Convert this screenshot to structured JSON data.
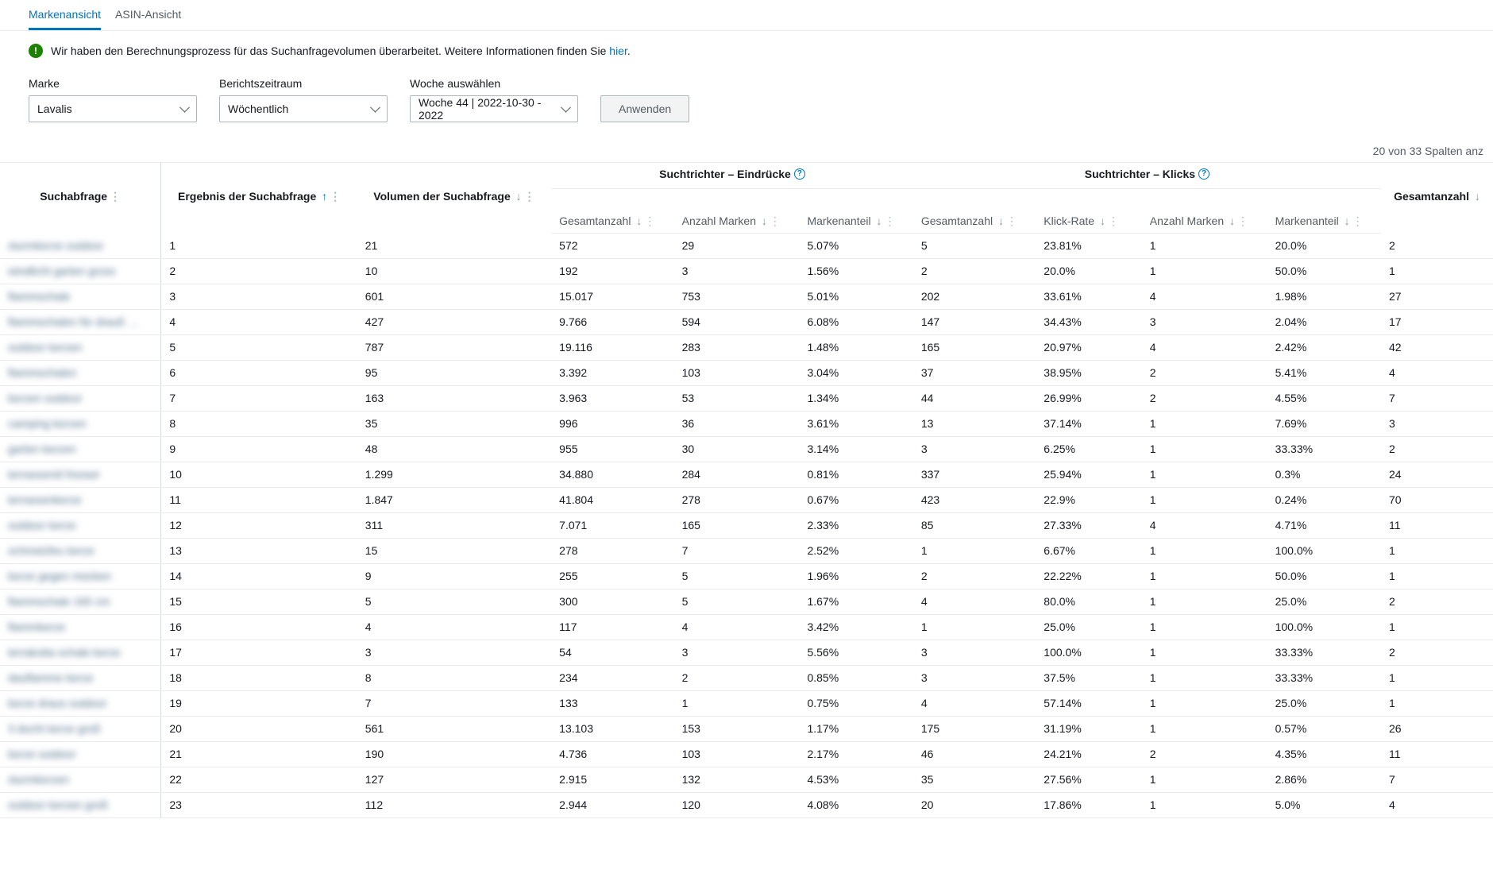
{
  "tabs": {
    "brand": "Markenansicht",
    "asin": "ASIN-Ansicht"
  },
  "notice": {
    "text": "Wir haben den Berechnungsprozess für das Suchanfragevolumen überarbeitet. Weitere Informationen finden Sie ",
    "link": "hier",
    "suffix": "."
  },
  "filters": {
    "brand_label": "Marke",
    "brand_value": "Lavalis",
    "period_label": "Berichtszeitraum",
    "period_value": "Wöchentlich",
    "week_label": "Woche auswählen",
    "week_value": "Woche 44 | 2022-10-30 - 2022",
    "apply": "Anwenden"
  },
  "columns_indicator": "20 von 33 Spalten anz",
  "groups": {
    "impressions": "Suchtrichter – Eindrücke",
    "clicks": "Suchtrichter – Klicks"
  },
  "headers": {
    "query": "Suchabfrage",
    "rank": "Ergebnis der Suchabfrage",
    "volume": "Volumen der Suchabfrage",
    "impr_total": "Gesamtanzahl",
    "impr_brands": "Anzahl Marken",
    "impr_share": "Markenanteil",
    "click_total": "Gesamtanzahl",
    "click_rate": "Klick-Rate",
    "click_brands": "Anzahl Marken",
    "click_share": "Markenanteil",
    "last_total": "Gesamtanzahl"
  },
  "rows": [
    {
      "q": "sturmkerze outdoor",
      "r": "1",
      "v": "21",
      "it": "572",
      "ib": "29",
      "is": "5.07%",
      "ct": "5",
      "cr": "23.81%",
      "cb": "1",
      "cs": "20.0%",
      "lt": "2"
    },
    {
      "q": "windlicht garten gross",
      "r": "2",
      "v": "10",
      "it": "192",
      "ib": "3",
      "is": "1.56%",
      "ct": "2",
      "cr": "20.0%",
      "cb": "1",
      "cs": "50.0%",
      "lt": "1"
    },
    {
      "q": "flammschale",
      "r": "3",
      "v": "601",
      "it": "15.017",
      "ib": "753",
      "is": "5.01%",
      "ct": "202",
      "cr": "33.61%",
      "cb": "4",
      "cs": "1.98%",
      "lt": "27"
    },
    {
      "q": "flammschalen für drauß …",
      "r": "4",
      "v": "427",
      "it": "9.766",
      "ib": "594",
      "is": "6.08%",
      "ct": "147",
      "cr": "34.43%",
      "cb": "3",
      "cs": "2.04%",
      "lt": "17"
    },
    {
      "q": "outdoor kerzen",
      "r": "5",
      "v": "787",
      "it": "19.116",
      "ib": "283",
      "is": "1.48%",
      "ct": "165",
      "cr": "20.97%",
      "cb": "4",
      "cs": "2.42%",
      "lt": "42"
    },
    {
      "q": "flammschalen",
      "r": "6",
      "v": "95",
      "it": "3.392",
      "ib": "103",
      "is": "3.04%",
      "ct": "37",
      "cr": "38.95%",
      "cb": "2",
      "cs": "5.41%",
      "lt": "4"
    },
    {
      "q": "kerzen outdoor",
      "r": "7",
      "v": "163",
      "it": "3.963",
      "ib": "53",
      "is": "1.34%",
      "ct": "44",
      "cr": "26.99%",
      "cb": "2",
      "cs": "4.55%",
      "lt": "7"
    },
    {
      "q": "camping kerzen",
      "r": "8",
      "v": "35",
      "it": "996",
      "ib": "36",
      "is": "3.61%",
      "ct": "13",
      "cr": "37.14%",
      "cb": "1",
      "cs": "7.69%",
      "lt": "3"
    },
    {
      "q": "garten kerzen",
      "r": "9",
      "v": "48",
      "it": "955",
      "ib": "30",
      "is": "3.14%",
      "ct": "3",
      "cr": "6.25%",
      "cb": "1",
      "cs": "33.33%",
      "lt": "2"
    },
    {
      "q": "terrassenöl fresser",
      "r": "10",
      "v": "1.299",
      "it": "34.880",
      "ib": "284",
      "is": "0.81%",
      "ct": "337",
      "cr": "25.94%",
      "cb": "1",
      "cs": "0.3%",
      "lt": "24"
    },
    {
      "q": "terrassenkerze",
      "r": "11",
      "v": "1.847",
      "it": "41.804",
      "ib": "278",
      "is": "0.67%",
      "ct": "423",
      "cr": "22.9%",
      "cb": "1",
      "cs": "0.24%",
      "lt": "70"
    },
    {
      "q": "outdoor kerze",
      "r": "12",
      "v": "311",
      "it": "7.071",
      "ib": "165",
      "is": "2.33%",
      "ct": "85",
      "cr": "27.33%",
      "cb": "4",
      "cs": "4.71%",
      "lt": "11"
    },
    {
      "q": "schmelzfeu kerze",
      "r": "13",
      "v": "15",
      "it": "278",
      "ib": "7",
      "is": "2.52%",
      "ct": "1",
      "cr": "6.67%",
      "cb": "1",
      "cs": "100.0%",
      "lt": "1"
    },
    {
      "q": "kerze gegen mücken",
      "r": "14",
      "v": "9",
      "it": "255",
      "ib": "5",
      "is": "1.96%",
      "ct": "2",
      "cr": "22.22%",
      "cb": "1",
      "cs": "50.0%",
      "lt": "1"
    },
    {
      "q": "flammschale 165 cm",
      "r": "15",
      "v": "5",
      "it": "300",
      "ib": "5",
      "is": "1.67%",
      "ct": "4",
      "cr": "80.0%",
      "cb": "1",
      "cs": "25.0%",
      "lt": "2"
    },
    {
      "q": "flammkerze",
      "r": "16",
      "v": "4",
      "it": "117",
      "ib": "4",
      "is": "3.42%",
      "ct": "1",
      "cr": "25.0%",
      "cb": "1",
      "cs": "100.0%",
      "lt": "1"
    },
    {
      "q": "terrakotta schale kerze",
      "r": "17",
      "v": "3",
      "it": "54",
      "ib": "3",
      "is": "5.56%",
      "ct": "3",
      "cr": "100.0%",
      "cb": "1",
      "cs": "33.33%",
      "lt": "2"
    },
    {
      "q": "dauflamme kerze",
      "r": "18",
      "v": "8",
      "it": "234",
      "ib": "2",
      "is": "0.85%",
      "ct": "3",
      "cr": "37.5%",
      "cb": "1",
      "cs": "33.33%",
      "lt": "1"
    },
    {
      "q": "kerze draus outdoor",
      "r": "19",
      "v": "7",
      "it": "133",
      "ib": "1",
      "is": "0.75%",
      "ct": "4",
      "cr": "57.14%",
      "cb": "1",
      "cs": "25.0%",
      "lt": "1"
    },
    {
      "q": "3 docht kerze groß",
      "r": "20",
      "v": "561",
      "it": "13.103",
      "ib": "153",
      "is": "1.17%",
      "ct": "175",
      "cr": "31.19%",
      "cb": "1",
      "cs": "0.57%",
      "lt": "26"
    },
    {
      "q": "kerze outdoor",
      "r": "21",
      "v": "190",
      "it": "4.736",
      "ib": "103",
      "is": "2.17%",
      "ct": "46",
      "cr": "24.21%",
      "cb": "2",
      "cs": "4.35%",
      "lt": "11"
    },
    {
      "q": "sturmkerzen",
      "r": "22",
      "v": "127",
      "it": "2.915",
      "ib": "132",
      "is": "4.53%",
      "ct": "35",
      "cr": "27.56%",
      "cb": "1",
      "cs": "2.86%",
      "lt": "7"
    },
    {
      "q": "outdoor kerzen groß",
      "r": "23",
      "v": "112",
      "it": "2.944",
      "ib": "120",
      "is": "4.08%",
      "ct": "20",
      "cr": "17.86%",
      "cb": "1",
      "cs": "5.0%",
      "lt": "4"
    }
  ]
}
